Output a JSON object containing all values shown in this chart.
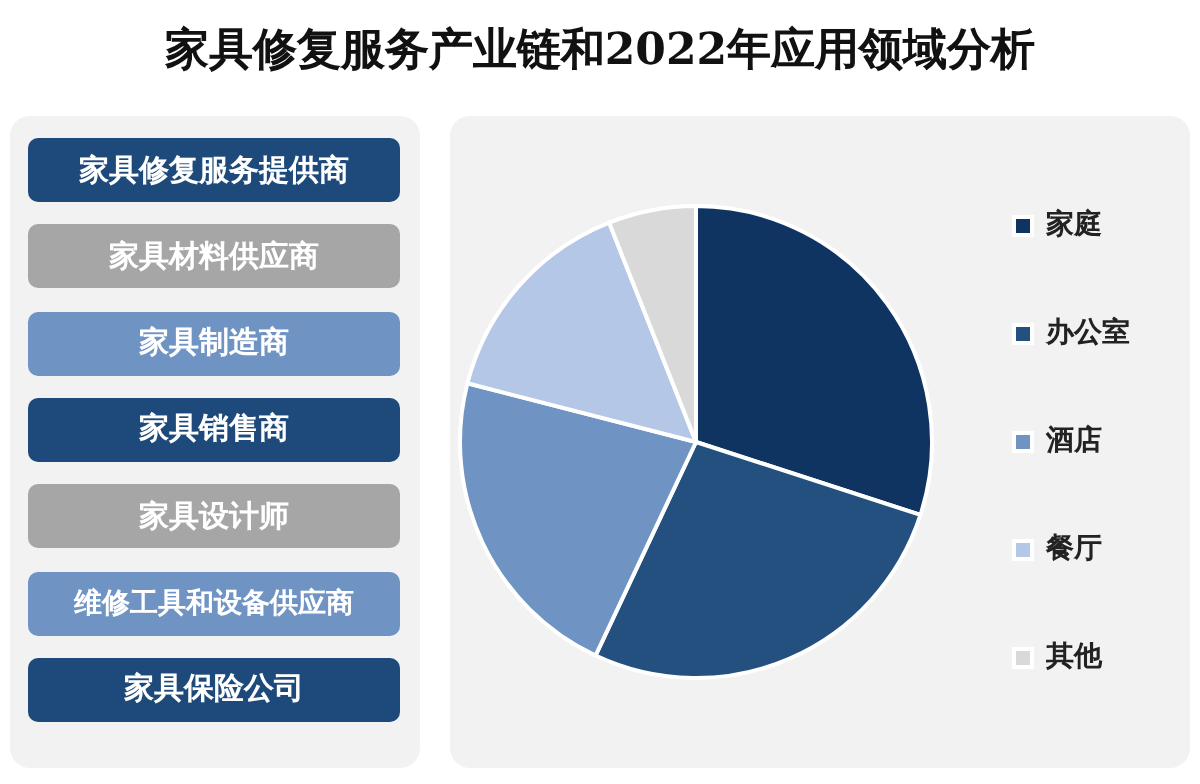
{
  "chart_data": {
    "type": "pie",
    "title": "家具修复服务产业链和2022年应用领域分析",
    "categories": [
      "家庭",
      "办公室",
      "酒店",
      "餐厅",
      "其他"
    ],
    "values": [
      30,
      27,
      22,
      15,
      6
    ],
    "colors": [
      "#0f3461",
      "#23507e",
      "#6f94c4",
      "#b4c7e7",
      "#d9d9d9"
    ],
    "legend": "right",
    "annotations": [
      "家具修复服务提供商",
      "家具材料供应商",
      "家具制造商",
      "家具销售商",
      "家具设计师",
      "维修工具和设备供应商",
      "家具保险公司"
    ]
  }
}
